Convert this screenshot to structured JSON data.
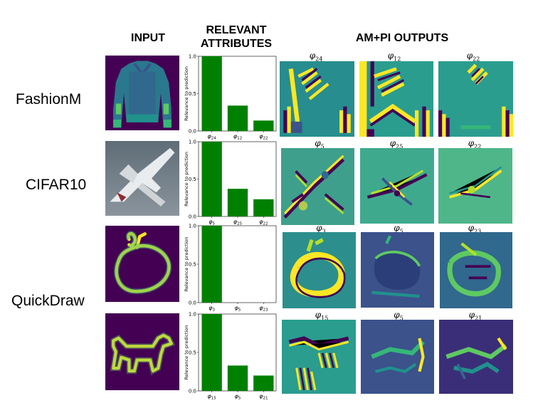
{
  "headers": {
    "input": "INPUT",
    "relevant_line1": "RELEVANT",
    "relevant_line2": "ATTRIBUTES",
    "outputs": "AM+PI OUTPUTS"
  },
  "rows": [
    {
      "label": "FashionM",
      "outputs": [
        {
          "sym": "φ",
          "sub": "24"
        },
        {
          "sym": "φ",
          "sub": "12"
        },
        {
          "sym": "φ",
          "sub": "22"
        }
      ]
    },
    {
      "label": "CIFAR10",
      "outputs": [
        {
          "sym": "φ",
          "sub": "5"
        },
        {
          "sym": "φ",
          "sub": "25"
        },
        {
          "sym": "φ",
          "sub": "22"
        }
      ]
    },
    {
      "label": "",
      "outputs": [
        {
          "sym": "φ",
          "sub": "3"
        },
        {
          "sym": "φ",
          "sub": "5"
        },
        {
          "sym": "φ",
          "sub": "23"
        }
      ]
    },
    {
      "label": "QuickDraw",
      "outputs": [
        {
          "sym": "φ",
          "sub": "15"
        },
        {
          "sym": "φ",
          "sub": "5"
        },
        {
          "sym": "φ",
          "sub": "21"
        }
      ]
    }
  ],
  "chart_data": [
    {
      "type": "bar",
      "categories": [
        "φ24",
        "φ12",
        "φ22"
      ],
      "values": [
        1.0,
        0.34,
        0.14
      ],
      "ylabel": "Relevance to prediction",
      "ylim": [
        0,
        1.0
      ],
      "yticks": [
        "0.0",
        "0.5",
        "1.0"
      ],
      "color": "#008000"
    },
    {
      "type": "bar",
      "categories": [
        "φ5",
        "φ25",
        "φ22"
      ],
      "values": [
        1.0,
        0.37,
        0.23
      ],
      "ylabel": "Relevance to prediction",
      "ylim": [
        0,
        1.0
      ],
      "yticks": [
        "0.0",
        "0.5",
        "1.0"
      ],
      "color": "#008000"
    },
    {
      "type": "bar",
      "categories": [
        "φ3",
        "φ5",
        "φ23"
      ],
      "values": [
        1.0,
        0.0,
        0.0
      ],
      "ylabel": "Relevance to prediction",
      "ylim": [
        0,
        1.0
      ],
      "yticks": [
        "0.0",
        "0.5",
        "1.0"
      ],
      "color": "#008000"
    },
    {
      "type": "bar",
      "categories": [
        "φ15",
        "φ5",
        "φ21"
      ],
      "values": [
        1.0,
        0.33,
        0.2
      ],
      "ylabel": "Relevance to prediction",
      "ylim": [
        0,
        1.0
      ],
      "yticks": [
        "0.0",
        "0.5",
        "1.0"
      ],
      "color": "#008000"
    }
  ],
  "colors": {
    "viridis_dark": "#440154",
    "viridis_teal": "#21918c",
    "viridis_yellow": "#fde725",
    "bar": "#008000"
  }
}
